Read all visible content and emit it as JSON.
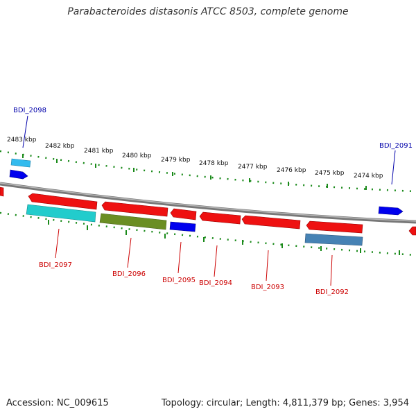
{
  "title": "Parabacteroides distasonis ATCC 8503, complete genome",
  "footer": {
    "accession_label": "Accession: NC_009615",
    "summary_label": "Topology: circular; Length: 4,811,379 bp; Genes: 3,954"
  },
  "colors": {
    "backbone": "#8a8a8a",
    "tick": "#1a8a1a",
    "label_forward": "#0000aa",
    "label_reverse": "#cc0000"
  },
  "ticks": [
    {
      "label": "2483 kbp"
    },
    {
      "label": "2482 kbp"
    },
    {
      "label": "2481 kbp"
    },
    {
      "label": "2480 kbp"
    },
    {
      "label": "2479 kbp"
    },
    {
      "label": "2478 kbp"
    },
    {
      "label": "2477 kbp"
    },
    {
      "label": "2476 kbp"
    },
    {
      "label": "2475 kbp"
    },
    {
      "label": "2474 kbp"
    }
  ],
  "gene_labels": [
    {
      "name": "BDI_2098",
      "strand": "forward"
    },
    {
      "name": "BDI_2091",
      "strand": "forward"
    },
    {
      "name": "BDI_2097",
      "strand": "reverse"
    },
    {
      "name": "BDI_2096",
      "strand": "reverse"
    },
    {
      "name": "BDI_2095",
      "strand": "reverse"
    },
    {
      "name": "BDI_2094",
      "strand": "reverse"
    },
    {
      "name": "BDI_2093",
      "strand": "reverse"
    },
    {
      "name": "BDI_2092",
      "strand": "reverse"
    }
  ],
  "features": [
    {
      "name": "cog-forward-cyan",
      "color": "#33bbee"
    },
    {
      "name": "cds-forward-blue",
      "color": "#0000ee"
    },
    {
      "name": "cds-reverse-red",
      "color": "#ee1111"
    },
    {
      "name": "cog-reverse-teal",
      "color": "#22cccc"
    },
    {
      "name": "cog-reverse-olive",
      "color": "#6b8e23"
    },
    {
      "name": "cog-reverse-steel",
      "color": "#4682b4"
    }
  ]
}
